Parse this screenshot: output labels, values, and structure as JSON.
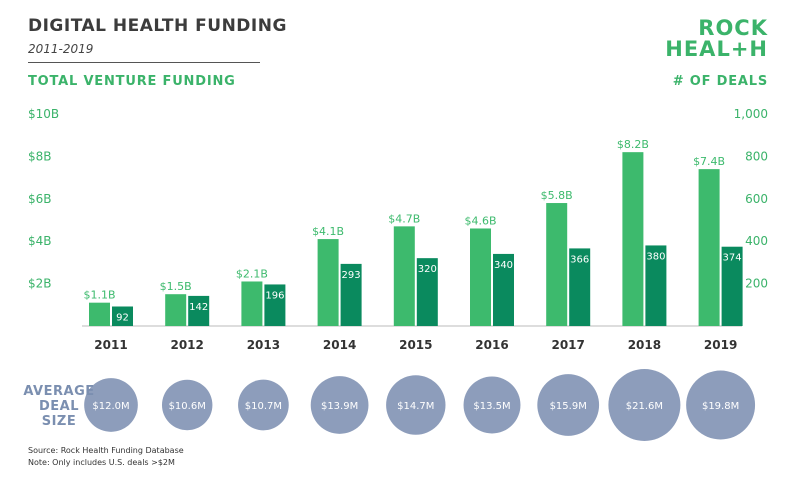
{
  "header": {
    "title": "DIGITAL HEALTH FUNDING",
    "subtitle": "2011-2019",
    "logo_line1": "ROCK",
    "logo_line2": "HEAL+H"
  },
  "axis_headers": {
    "left": "TOTAL VENTURE FUNDING",
    "right": "# OF DEALS"
  },
  "deal_size_label": [
    "AVERAGE",
    "DEAL",
    "SIZE"
  ],
  "footnotes": {
    "source": "Source: Rock Health Funding Database",
    "note": "Note: Only includes U.S. deals >$2M"
  },
  "colors": {
    "funding_bar": "#3dba6d",
    "deals_bar": "#0a8a5e",
    "bubble": "#8d9dbb",
    "accent_green": "#3bb36a",
    "bubble_label": "#7b8fb0"
  },
  "chart_data": {
    "type": "bar",
    "categories": [
      "2011",
      "2012",
      "2013",
      "2014",
      "2015",
      "2016",
      "2017",
      "2018",
      "2019"
    ],
    "series": [
      {
        "name": "TOTAL VENTURE FUNDING",
        "axis": "left",
        "values": [
          1.1,
          1.5,
          2.1,
          4.1,
          4.7,
          4.6,
          5.8,
          8.2,
          7.4
        ],
        "labels": [
          "$1.1B",
          "$1.5B",
          "$2.1B",
          "$4.1B",
          "$4.7B",
          "$4.6B",
          "$5.8B",
          "$8.2B",
          "$7.4B"
        ]
      },
      {
        "name": "# OF DEALS",
        "axis": "right",
        "values": [
          92,
          142,
          196,
          293,
          320,
          340,
          366,
          380,
          374
        ],
        "labels": [
          "92",
          "142",
          "196",
          "293",
          "320",
          "340",
          "366",
          "380",
          "374"
        ]
      }
    ],
    "avg_deal_size": {
      "label": "AVERAGE DEAL SIZE",
      "values": [
        12.0,
        10.6,
        10.7,
        13.9,
        14.7,
        13.5,
        15.9,
        21.6,
        19.8
      ],
      "labels": [
        "$12.0M",
        "$10.6M",
        "$10.7M",
        "$13.9M",
        "$14.7M",
        "$13.5M",
        "$15.9M",
        "$21.6M",
        "$19.8M"
      ]
    },
    "y_left": {
      "ylim": [
        0,
        10
      ],
      "ticks": [
        2,
        4,
        6,
        8,
        10
      ],
      "tick_labels": [
        "$2B",
        "$4B",
        "$6B",
        "$8B",
        "$10B"
      ]
    },
    "y_right": {
      "ylim": [
        0,
        1000
      ],
      "ticks": [
        200,
        400,
        600,
        800,
        1000
      ],
      "tick_labels": [
        "200",
        "400",
        "600",
        "800",
        "1,000"
      ]
    },
    "grid": false
  }
}
